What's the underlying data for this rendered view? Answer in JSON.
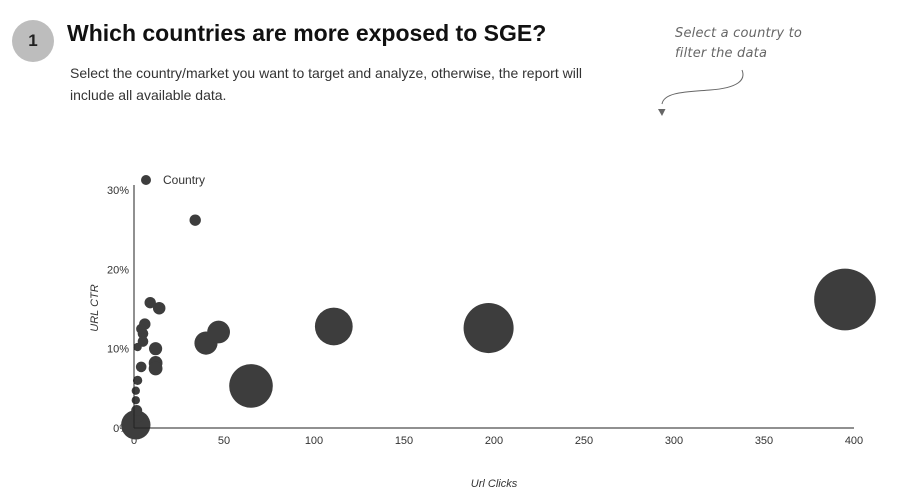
{
  "header": {
    "step_number": "1",
    "title": "Which countries are more exposed to SGE?",
    "subtitle": "Select the country/market you want to target and analyze, otherwise, the report will include all available data.",
    "hint": "Select a country to filter the data"
  },
  "colors": {
    "bubble": "#3d3d3d",
    "badge": "#bdbdbd",
    "axis": "#222222"
  },
  "chart_data": {
    "type": "scatter",
    "xlabel": "Url Clicks",
    "ylabel": "URL CTR",
    "legend": {
      "label": "Country",
      "placement": "top-left"
    },
    "xlim": [
      0,
      400
    ],
    "ylim": [
      0,
      0.3
    ],
    "x_ticks": [
      0,
      50,
      100,
      150,
      200,
      250,
      300,
      350,
      400
    ],
    "x_tick_labels": [
      "0",
      "50",
      "100",
      "150",
      "200",
      "250",
      "300",
      "350",
      "400"
    ],
    "y_ticks": [
      0,
      0.1,
      0.2,
      0.3
    ],
    "y_tick_labels": [
      "0%",
      "10%",
      "20%",
      "30%"
    ],
    "grid": false,
    "size_encoding": "bubble area proportional to value",
    "points": [
      {
        "x": 34,
        "y": 0.262,
        "size": 15
      },
      {
        "x": 9,
        "y": 0.158,
        "size": 15
      },
      {
        "x": 14,
        "y": 0.151,
        "size": 18
      },
      {
        "x": 6,
        "y": 0.131,
        "size": 15
      },
      {
        "x": 4,
        "y": 0.125,
        "size": 12
      },
      {
        "x": 5,
        "y": 0.119,
        "size": 13
      },
      {
        "x": 5,
        "y": 0.109,
        "size": 13
      },
      {
        "x": 2,
        "y": 0.102,
        "size": 8
      },
      {
        "x": 12,
        "y": 0.1,
        "size": 20
      },
      {
        "x": 12,
        "y": 0.082,
        "size": 22
      },
      {
        "x": 12,
        "y": 0.075,
        "size": 22
      },
      {
        "x": 4,
        "y": 0.077,
        "size": 13
      },
      {
        "x": 2,
        "y": 0.06,
        "size": 10
      },
      {
        "x": 1,
        "y": 0.047,
        "size": 8
      },
      {
        "x": 1,
        "y": 0.035,
        "size": 8
      },
      {
        "x": 1.5,
        "y": 0.022,
        "size": 14
      },
      {
        "x": 2,
        "y": 0.014,
        "size": 16
      },
      {
        "x": 47,
        "y": 0.121,
        "size": 60
      },
      {
        "x": 40,
        "y": 0.107,
        "size": 62
      },
      {
        "x": 65,
        "y": 0.053,
        "size": 220
      },
      {
        "x": 111,
        "y": 0.128,
        "size": 165
      },
      {
        "x": 197,
        "y": 0.126,
        "size": 290
      },
      {
        "x": 395,
        "y": 0.162,
        "size": 440
      },
      {
        "x": 1,
        "y": 0.004,
        "size": 100
      }
    ]
  }
}
